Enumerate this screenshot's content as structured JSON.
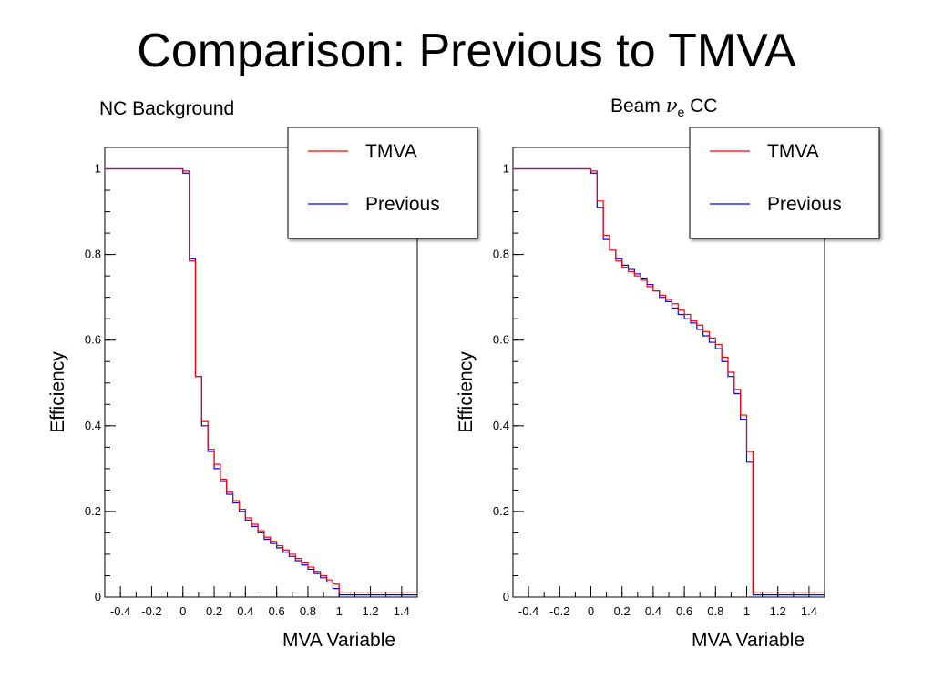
{
  "slide": {
    "title": "Comparison: Previous to TMVA"
  },
  "chart_data": [
    {
      "type": "line",
      "title": "NC Background",
      "xlabel": "MVA Variable",
      "ylabel": "Efficiency",
      "xlim": [
        -0.5,
        1.5
      ],
      "ylim": [
        0,
        1.05
      ],
      "xticks": [
        "-0.4",
        "-0.2",
        "0",
        "0.2",
        "0.4",
        "0.6",
        "0.8",
        "1",
        "1.2",
        "1.4"
      ],
      "yticks": [
        "0",
        "0.2",
        "0.4",
        "0.6",
        "0.8",
        "1"
      ],
      "legend": {
        "placement": "top-right",
        "entries": [
          "TMVA",
          "Previous"
        ]
      },
      "x": [
        -0.5,
        0.0,
        0.04,
        0.08,
        0.12,
        0.16,
        0.2,
        0.24,
        0.28,
        0.32,
        0.36,
        0.4,
        0.44,
        0.48,
        0.52,
        0.56,
        0.6,
        0.64,
        0.68,
        0.72,
        0.76,
        0.8,
        0.84,
        0.88,
        0.92,
        0.96,
        1.0,
        1.5
      ],
      "series": [
        {
          "name": "TMVA",
          "color": "#ff0000",
          "values": [
            1.0,
            0.995,
            0.785,
            0.515,
            0.41,
            0.345,
            0.31,
            0.275,
            0.245,
            0.225,
            0.205,
            0.185,
            0.17,
            0.155,
            0.14,
            0.13,
            0.12,
            0.11,
            0.1,
            0.09,
            0.08,
            0.07,
            0.06,
            0.05,
            0.04,
            0.03,
            0.01,
            0.01
          ]
        },
        {
          "name": "Previous",
          "color": "#0000ff",
          "values": [
            1.0,
            0.99,
            0.79,
            0.515,
            0.4,
            0.34,
            0.3,
            0.27,
            0.24,
            0.22,
            0.2,
            0.18,
            0.165,
            0.15,
            0.135,
            0.125,
            0.115,
            0.105,
            0.095,
            0.085,
            0.075,
            0.065,
            0.055,
            0.045,
            0.035,
            0.02,
            0.005,
            0.005
          ]
        }
      ]
    },
    {
      "type": "line",
      "title": "Beam νe CC",
      "xlabel": "MVA Variable",
      "ylabel": "Efficiency",
      "xlim": [
        -0.5,
        1.5
      ],
      "ylim": [
        0,
        1.05
      ],
      "xticks": [
        "-0.4",
        "-0.2",
        "0",
        "0.2",
        "0.4",
        "0.6",
        "0.8",
        "1",
        "1.2",
        "1.4"
      ],
      "yticks": [
        "0",
        "0.2",
        "0.4",
        "0.6",
        "0.8",
        "1"
      ],
      "legend": {
        "placement": "top-right",
        "entries": [
          "TMVA",
          "Previous"
        ]
      },
      "x": [
        -0.5,
        0.0,
        0.04,
        0.08,
        0.12,
        0.16,
        0.2,
        0.24,
        0.28,
        0.32,
        0.36,
        0.4,
        0.44,
        0.48,
        0.52,
        0.56,
        0.6,
        0.64,
        0.68,
        0.72,
        0.76,
        0.8,
        0.84,
        0.88,
        0.92,
        0.96,
        1.0,
        1.04,
        1.5
      ],
      "series": [
        {
          "name": "TMVA",
          "color": "#ff0000",
          "values": [
            1.0,
            0.995,
            0.925,
            0.845,
            0.81,
            0.785,
            0.77,
            0.76,
            0.75,
            0.74,
            0.725,
            0.715,
            0.705,
            0.695,
            0.685,
            0.67,
            0.66,
            0.645,
            0.635,
            0.62,
            0.605,
            0.59,
            0.56,
            0.525,
            0.485,
            0.425,
            0.34,
            0.01,
            0.01
          ]
        },
        {
          "name": "Previous",
          "color": "#0000ff",
          "values": [
            1.0,
            0.99,
            0.91,
            0.835,
            0.81,
            0.79,
            0.775,
            0.765,
            0.755,
            0.745,
            0.73,
            0.715,
            0.7,
            0.69,
            0.675,
            0.66,
            0.65,
            0.64,
            0.625,
            0.61,
            0.595,
            0.58,
            0.55,
            0.515,
            0.475,
            0.415,
            0.315,
            0.005,
            0.005
          ]
        }
      ]
    }
  ]
}
